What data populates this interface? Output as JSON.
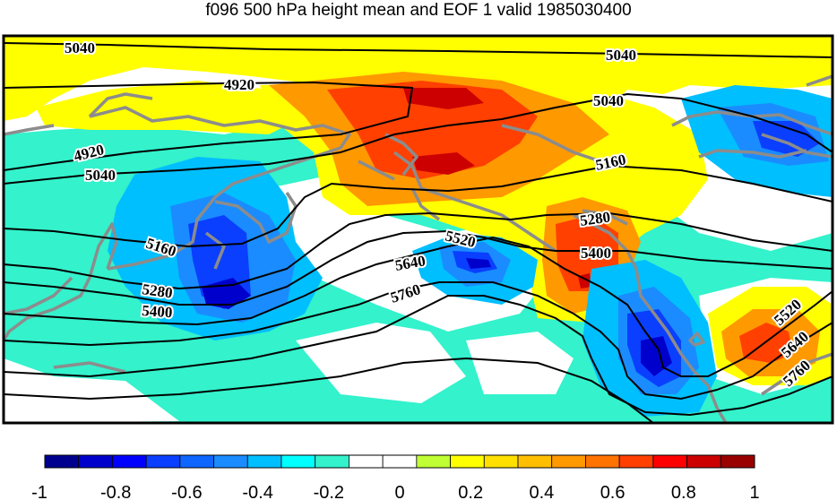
{
  "title": "f096 500 hPa height mean and EOF 1 valid 1985030400",
  "colorbar": {
    "colors": [
      "#00008f",
      "#0000cc",
      "#0000ff",
      "#0a3fff",
      "#0f66ff",
      "#1a8cff",
      "#00bfff",
      "#00ffff",
      "#33f2cc",
      "#ffffff",
      "#ffffff",
      "#bfff33",
      "#ffff00",
      "#ffe000",
      "#ffbf00",
      "#ff9900",
      "#ff7300",
      "#ff4000",
      "#ff0000",
      "#cc0000",
      "#990000"
    ],
    "tick_labels": [
      "-1",
      "-0.8",
      "-0.6",
      "-0.4",
      "-0.2",
      "0",
      "0.2",
      "0.4",
      "0.6",
      "0.8",
      "1"
    ]
  },
  "contour_labels": [
    {
      "text": "5040"
    },
    {
      "text": "5040"
    },
    {
      "text": "4920"
    },
    {
      "text": "5040"
    },
    {
      "text": "4920"
    },
    {
      "text": "5040"
    },
    {
      "text": "5160"
    },
    {
      "text": "5160"
    },
    {
      "text": "5280"
    },
    {
      "text": "5400"
    },
    {
      "text": "5520"
    },
    {
      "text": "5640"
    },
    {
      "text": "5760"
    },
    {
      "text": "5280"
    },
    {
      "text": "5400"
    },
    {
      "text": "5520"
    },
    {
      "text": "5640"
    },
    {
      "text": "5760"
    }
  ]
}
